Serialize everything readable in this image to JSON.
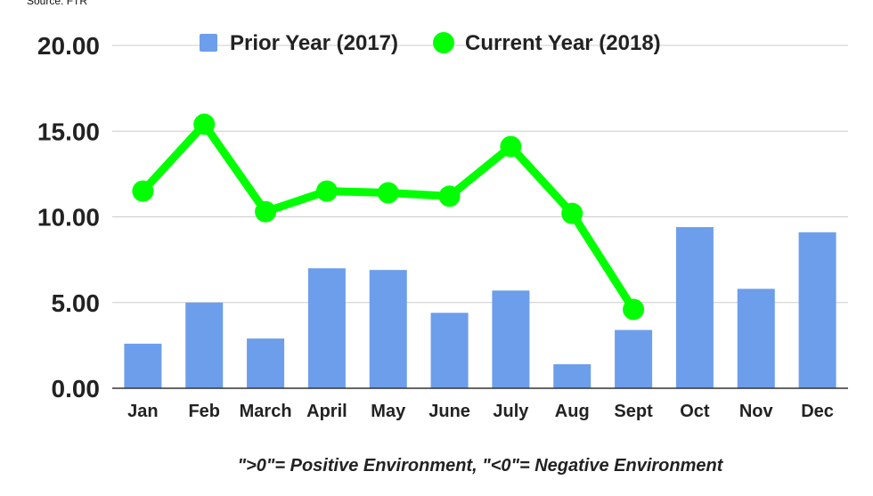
{
  "source": "Source: FTR",
  "footnote": "\">0\"= Positive Environment, \"<0\"= Negative Environment",
  "chart_data": {
    "type": "bar",
    "categories": [
      "Jan",
      "Feb",
      "March",
      "April",
      "May",
      "June",
      "July",
      "Aug",
      "Sept",
      "Oct",
      "Nov",
      "Dec"
    ],
    "ylim": [
      0,
      20
    ],
    "yticks": [
      "0.00",
      "5.00",
      "10.00",
      "15.00",
      "20.00"
    ],
    "ytick_values": [
      0,
      5,
      10,
      15,
      20
    ],
    "grid": true,
    "legend_position": "top",
    "series": [
      {
        "name": "Prior Year (2017)",
        "type": "bar",
        "color": "#6d9eeb",
        "values": [
          2.6,
          5.0,
          2.9,
          7.0,
          6.9,
          4.4,
          5.7,
          1.4,
          3.4,
          9.4,
          5.8,
          9.1
        ]
      },
      {
        "name": "Current Year (2018)",
        "type": "line",
        "color": "#00ff00",
        "values": [
          11.5,
          15.4,
          10.3,
          11.5,
          11.4,
          11.2,
          14.1,
          10.2,
          4.6,
          null,
          null,
          null
        ]
      }
    ]
  }
}
